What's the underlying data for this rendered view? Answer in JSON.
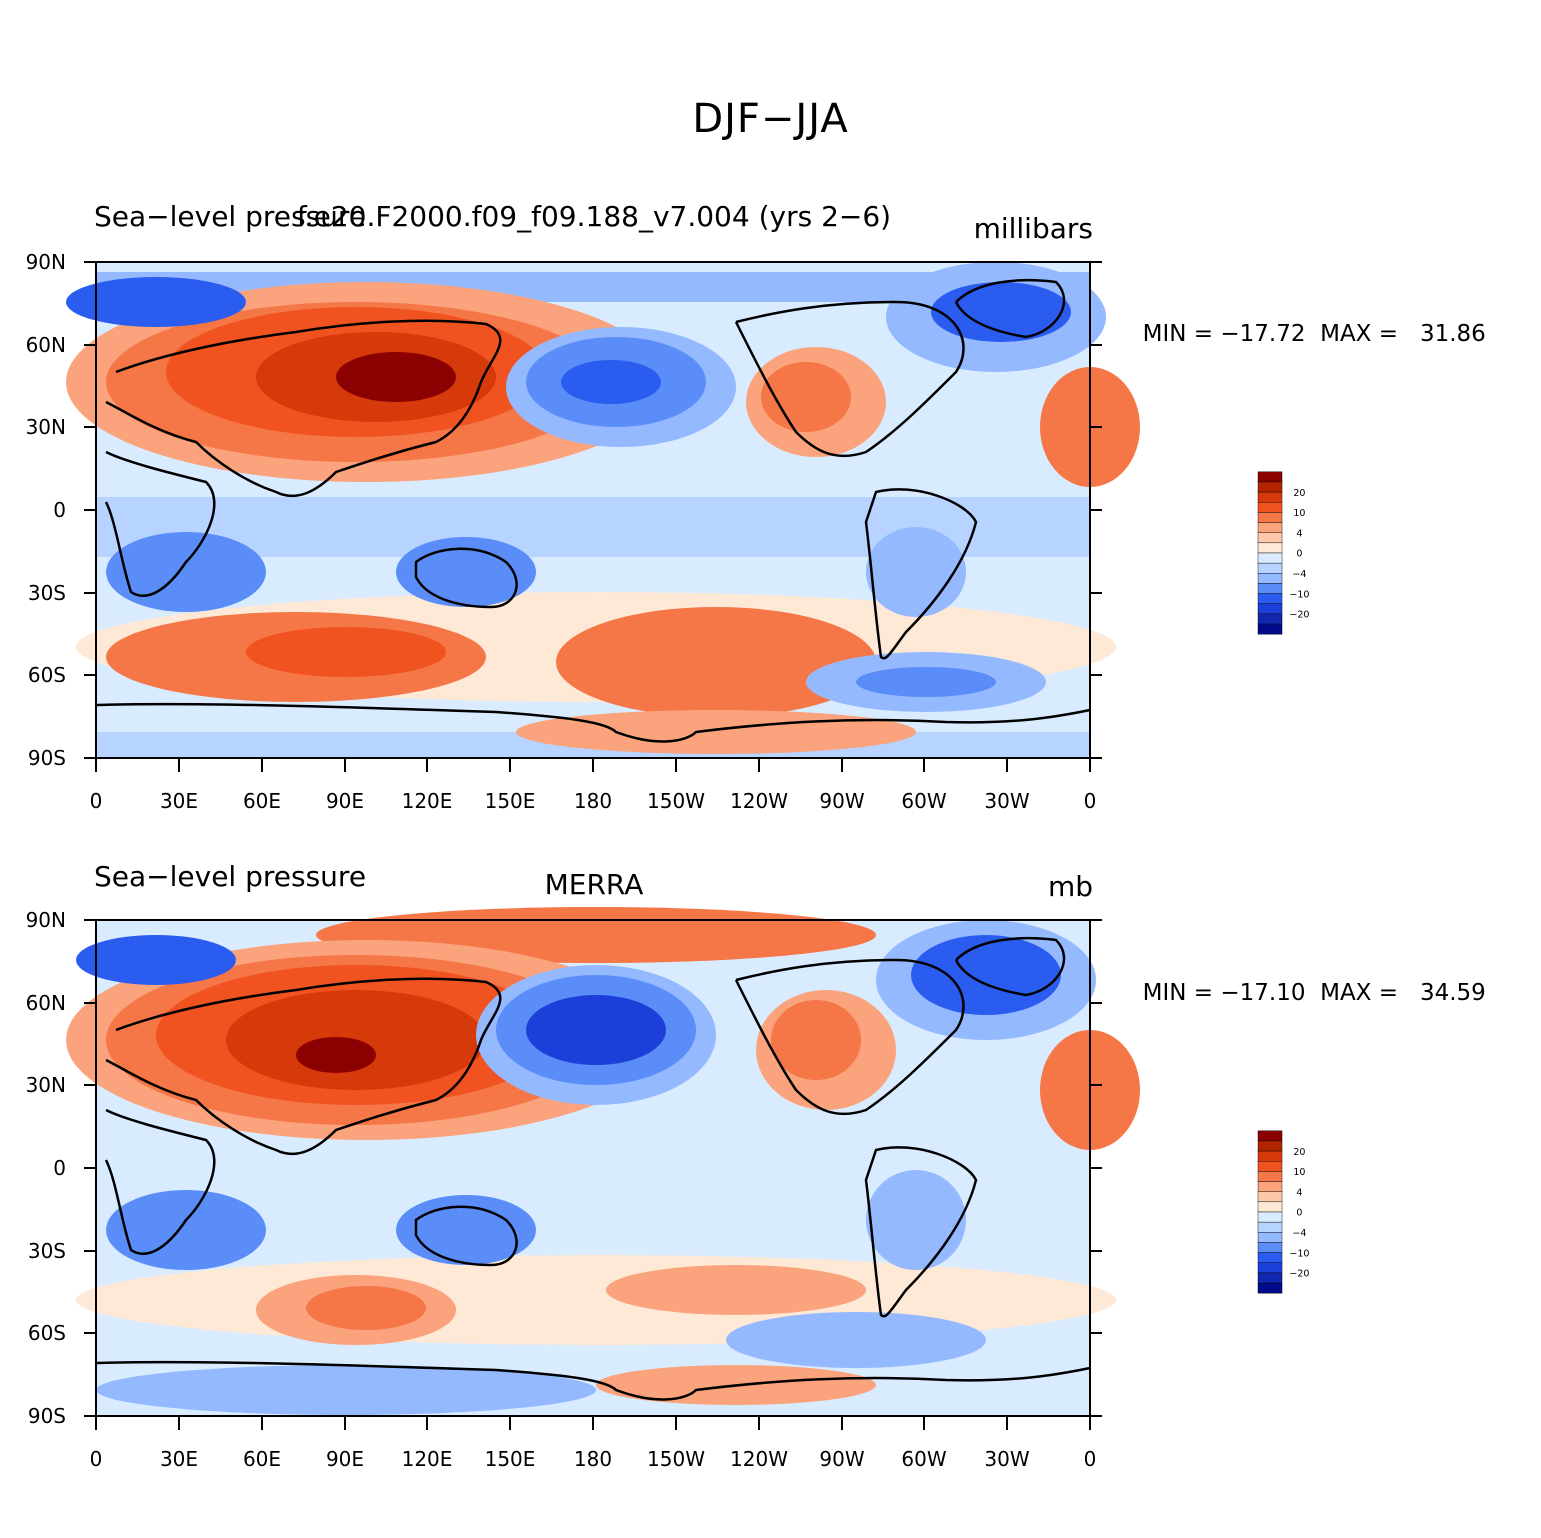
{
  "figure": {
    "title": "DJF−JJA"
  },
  "panels": [
    {
      "left_title": "Sea−level pressure",
      "center_title": "f.e20.F2000.f09_f09.188_v7.004 (yrs 2−6)",
      "right_title": "millibars",
      "min_label": "MIN = −17.72",
      "max_label": "MAX =   31.86"
    },
    {
      "left_title": "Sea−level pressure",
      "center_title": "MERRA",
      "right_title": "mb",
      "min_label": "MIN = −17.10",
      "max_label": "MAX =   34.59"
    }
  ],
  "axes": {
    "lat_ticks": [
      "90N",
      "60N",
      "30N",
      "0",
      "30S",
      "60S",
      "90S"
    ],
    "lon_ticks": [
      "0",
      "30E",
      "60E",
      "90E",
      "120E",
      "150E",
      "180",
      "150W",
      "120W",
      "90W",
      "60W",
      "30W",
      "0"
    ]
  },
  "colorbar": {
    "colors": [
      "#8b0000",
      "#b22300",
      "#d63a0a",
      "#f0531f",
      "#f57646",
      "#faa37c",
      "#fdc7aa",
      "#fee8d6",
      "#d9ebff",
      "#b7d3ff",
      "#94b9ff",
      "#5a8df8",
      "#2a5cf0",
      "#1b3fd8",
      "#1028b0",
      "#000a8a"
    ],
    "labels": [
      "20",
      "10",
      "4",
      "0",
      "−4",
      "−10",
      "−20"
    ]
  },
  "fills": {
    "ocean": "#d9ebff"
  }
}
